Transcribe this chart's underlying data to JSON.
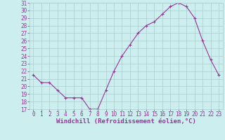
{
  "x": [
    0,
    1,
    2,
    3,
    4,
    5,
    6,
    7,
    8,
    9,
    10,
    11,
    12,
    13,
    14,
    15,
    16,
    17,
    18,
    19,
    20,
    21,
    22,
    23
  ],
  "y": [
    21.5,
    20.5,
    20.5,
    19.5,
    18.5,
    18.5,
    18.5,
    17.0,
    17.0,
    19.5,
    22.0,
    24.0,
    25.5,
    27.0,
    28.0,
    28.5,
    29.5,
    30.5,
    31.0,
    30.5,
    29.0,
    26.0,
    23.5,
    21.5
  ],
  "ylim": [
    17,
    31
  ],
  "yticks": [
    17,
    18,
    19,
    20,
    21,
    22,
    23,
    24,
    25,
    26,
    27,
    28,
    29,
    30,
    31
  ],
  "xticks": [
    0,
    1,
    2,
    3,
    4,
    5,
    6,
    7,
    8,
    9,
    10,
    11,
    12,
    13,
    14,
    15,
    16,
    17,
    18,
    19,
    20,
    21,
    22,
    23
  ],
  "xlabel": "Windchill (Refroidissement éolien,°C)",
  "line_color": "#993399",
  "marker": "+",
  "marker_size": 3,
  "bg_color": "#cceeee",
  "grid_color": "#aacccc",
  "tick_color": "#993399",
  "label_color": "#993399",
  "xlabel_fontsize": 6.5,
  "tick_fontsize": 5.5,
  "linewidth": 0.8
}
